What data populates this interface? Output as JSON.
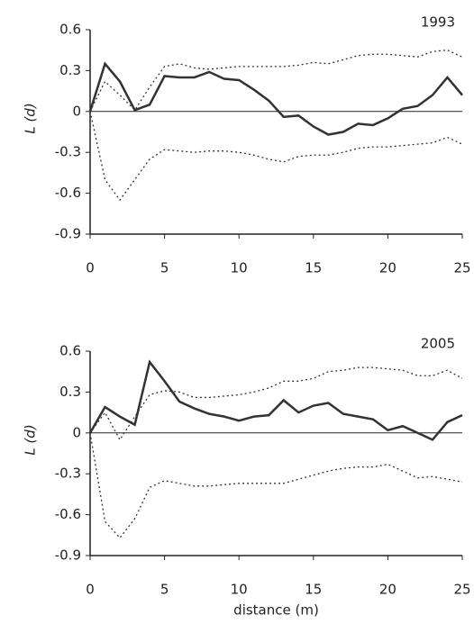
{
  "chart_data": [
    {
      "type": "line",
      "annotation": "1993",
      "ylabel": "L (d)",
      "x": [
        0,
        1,
        2,
        3,
        4,
        5,
        6,
        7,
        8,
        9,
        10,
        11,
        12,
        13,
        14,
        15,
        16,
        17,
        18,
        19,
        20,
        21,
        22,
        23,
        24,
        25
      ],
      "series": [
        {
          "color": "#333333",
          "style": "solid",
          "values": [
            0.0,
            0.35,
            0.22,
            0.01,
            0.05,
            0.26,
            0.25,
            0.25,
            0.29,
            0.24,
            0.23,
            0.16,
            0.08,
            -0.04,
            -0.03,
            -0.11,
            -0.17,
            -0.15,
            -0.09,
            -0.1,
            -0.05,
            0.02,
            0.04,
            0.12,
            0.25,
            0.12
          ]
        },
        {
          "color": "#333333",
          "style": "dotted",
          "values": [
            0.0,
            0.22,
            0.12,
            0.01,
            0.18,
            0.33,
            0.35,
            0.32,
            0.31,
            0.32,
            0.33,
            0.33,
            0.33,
            0.33,
            0.34,
            0.36,
            0.35,
            0.38,
            0.41,
            0.42,
            0.42,
            0.41,
            0.4,
            0.44,
            0.45,
            0.4
          ]
        },
        {
          "color": "#333333",
          "style": "dotted",
          "values": [
            0.0,
            -0.5,
            -0.65,
            -0.5,
            -0.35,
            -0.28,
            -0.29,
            -0.3,
            -0.29,
            -0.29,
            -0.3,
            -0.32,
            -0.35,
            -0.37,
            -0.33,
            -0.32,
            -0.32,
            -0.3,
            -0.27,
            -0.26,
            -0.26,
            -0.25,
            -0.24,
            -0.23,
            -0.19,
            -0.24
          ]
        }
      ],
      "xlim": [
        0,
        25
      ],
      "xticks": [
        0,
        5,
        10,
        15,
        20,
        25
      ],
      "ylim": [
        -0.9,
        0.6
      ],
      "yticks": [
        0.6,
        0.3,
        0,
        -0.3,
        -0.6,
        -0.9
      ]
    },
    {
      "type": "line",
      "annotation": "2005",
      "ylabel": "L (d)",
      "xlabel": "distance (m)",
      "x": [
        0,
        1,
        2,
        3,
        4,
        5,
        6,
        7,
        8,
        9,
        10,
        11,
        12,
        13,
        14,
        15,
        16,
        17,
        18,
        19,
        20,
        21,
        22,
        23,
        24,
        25
      ],
      "series": [
        {
          "color": "#333333",
          "style": "solid",
          "values": [
            0.0,
            0.19,
            0.12,
            0.06,
            0.52,
            0.38,
            0.23,
            0.18,
            0.14,
            0.12,
            0.09,
            0.12,
            0.13,
            0.24,
            0.15,
            0.2,
            0.22,
            0.14,
            0.12,
            0.1,
            0.02,
            0.05,
            0.0,
            -0.05,
            0.08,
            0.13
          ]
        },
        {
          "color": "#333333",
          "style": "dotted",
          "values": [
            0.0,
            0.15,
            -0.05,
            0.12,
            0.28,
            0.31,
            0.3,
            0.26,
            0.26,
            0.27,
            0.28,
            0.3,
            0.33,
            0.38,
            0.38,
            0.4,
            0.45,
            0.46,
            0.48,
            0.48,
            0.47,
            0.46,
            0.42,
            0.42,
            0.46,
            0.4
          ]
        },
        {
          "color": "#333333",
          "style": "dotted",
          "values": [
            0.0,
            -0.65,
            -0.77,
            -0.63,
            -0.4,
            -0.35,
            -0.37,
            -0.39,
            -0.39,
            -0.38,
            -0.37,
            -0.37,
            -0.37,
            -0.37,
            -0.34,
            -0.31,
            -0.28,
            -0.26,
            -0.25,
            -0.25,
            -0.23,
            -0.28,
            -0.33,
            -0.32,
            -0.34,
            -0.36
          ]
        }
      ],
      "xlim": [
        0,
        25
      ],
      "xticks": [
        0,
        5,
        10,
        15,
        20,
        25
      ],
      "ylim": [
        -0.9,
        0.6
      ],
      "yticks": [
        0.6,
        0.3,
        0,
        -0.3,
        -0.6,
        -0.9
      ]
    }
  ]
}
